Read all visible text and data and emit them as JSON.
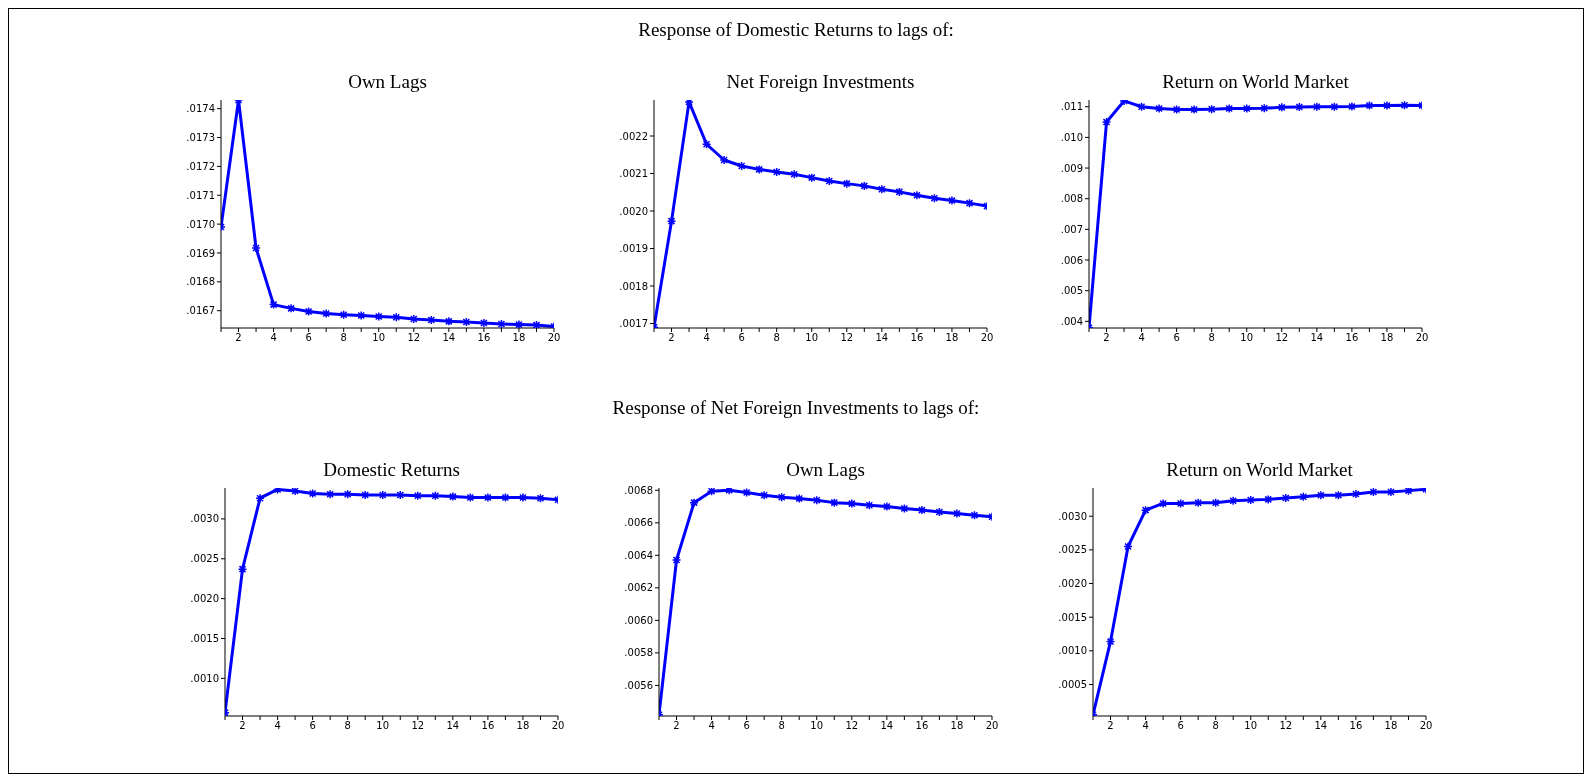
{
  "chart_data": [
    {
      "type": "line",
      "title": "Own Lags",
      "annotations": [
        "Response of Domestic Returns to lags of:"
      ],
      "x": [
        1,
        2,
        3,
        4,
        5,
        6,
        7,
        8,
        9,
        10,
        11,
        12,
        13,
        14,
        15,
        16,
        17,
        18,
        19,
        20
      ],
      "series": [
        {
          "color": "#0000ff",
          "values": [
            0.01699,
            0.01743,
            0.016917,
            0.016721,
            0.016708,
            0.016697,
            0.01669,
            0.016686,
            0.016683,
            0.01668,
            0.016677,
            0.016671,
            0.016668,
            0.016663,
            0.016661,
            0.016657,
            0.016654,
            0.016652,
            0.01665,
            0.016645
          ]
        }
      ],
      "xlim": [
        1,
        20
      ],
      "xticks": [
        {
          "value": 1,
          "label": null
        },
        2,
        {
          "value": 3,
          "label": null
        },
        4,
        {
          "value": 5,
          "label": null
        },
        6,
        {
          "value": 7,
          "label": null
        },
        8,
        {
          "value": 9,
          "label": null
        },
        10,
        {
          "value": 11,
          "label": null
        },
        12,
        {
          "value": 13,
          "label": null
        },
        14,
        {
          "value": 15,
          "label": null
        },
        16,
        {
          "value": 17,
          "label": null
        },
        18,
        {
          "value": 19,
          "label": null
        },
        20
      ],
      "ylim": [
        0.01664,
        0.01743
      ],
      "yticks": [
        {
          "value": 0.0167,
          "label": ".0167"
        },
        {
          "value": 0.0168,
          "label": ".0168"
        },
        {
          "value": 0.0169,
          "label": ".0169"
        },
        {
          "value": 0.017,
          "label": ".0170"
        },
        {
          "value": 0.0171,
          "label": ".0171"
        },
        {
          "value": 0.0172,
          "label": ".0172"
        },
        {
          "value": 0.0173,
          "label": ".0173"
        },
        {
          "value": 0.0174,
          "label": ".0174"
        }
      ],
      "marker": "cross",
      "line_style": "solid"
    },
    {
      "type": "line",
      "title": "Net Foreign Investments",
      "x": [
        1,
        2,
        3,
        4,
        5,
        6,
        7,
        8,
        9,
        10,
        11,
        12,
        13,
        14,
        15,
        16,
        17,
        18,
        19,
        20
      ],
      "series": [
        {
          "color": "#0000ff",
          "values": [
            0.00169,
            0.001973,
            0.002291,
            0.002178,
            0.002136,
            0.00212,
            0.002111,
            0.002104,
            0.002098,
            0.002089,
            0.00208,
            0.002073,
            0.002067,
            0.002058,
            0.002051,
            0.002042,
            0.002034,
            0.002028,
            0.002021,
            0.002013
          ]
        }
      ],
      "xlim": [
        1,
        20
      ],
      "xticks": [
        {
          "value": 1,
          "label": null
        },
        2,
        {
          "value": 3,
          "label": null
        },
        4,
        {
          "value": 5,
          "label": null
        },
        6,
        {
          "value": 7,
          "label": null
        },
        8,
        {
          "value": 9,
          "label": null
        },
        10,
        {
          "value": 11,
          "label": null
        },
        12,
        {
          "value": 13,
          "label": null
        },
        14,
        {
          "value": 15,
          "label": null
        },
        16,
        {
          "value": 17,
          "label": null
        },
        18,
        {
          "value": 19,
          "label": null
        },
        20
      ],
      "ylim": [
        0.001688,
        0.002296
      ],
      "yticks": [
        {
          "value": 0.0017,
          "label": ".0017"
        },
        {
          "value": 0.0018,
          "label": ".0018"
        },
        {
          "value": 0.0019,
          "label": ".0019"
        },
        {
          "value": 0.002,
          "label": ".0020"
        },
        {
          "value": 0.0021,
          "label": ".0021"
        },
        {
          "value": 0.0022,
          "label": ".0022"
        }
      ],
      "marker": "cross",
      "line_style": "solid"
    },
    {
      "type": "line",
      "title": "Return on World Market",
      "x": [
        1,
        2,
        3,
        4,
        5,
        6,
        7,
        8,
        9,
        10,
        11,
        12,
        13,
        14,
        15,
        16,
        17,
        18,
        19,
        20
      ],
      "series": [
        {
          "color": "#0000ff",
          "values": [
            0.00379,
            0.0105,
            0.01119,
            0.011,
            0.01094,
            0.01091,
            0.01091,
            0.01092,
            0.01094,
            0.01094,
            0.01095,
            0.01098,
            0.01099,
            0.011,
            0.011,
            0.01101,
            0.01104,
            0.01104,
            0.01105,
            0.01104
          ]
        }
      ],
      "xlim": [
        1,
        20
      ],
      "xticks": [
        {
          "value": 1,
          "label": null
        },
        2,
        {
          "value": 3,
          "label": null
        },
        4,
        {
          "value": 5,
          "label": null
        },
        6,
        {
          "value": 7,
          "label": null
        },
        8,
        {
          "value": 9,
          "label": null
        },
        10,
        {
          "value": 11,
          "label": null
        },
        12,
        {
          "value": 13,
          "label": null
        },
        14,
        {
          "value": 15,
          "label": null
        },
        16,
        {
          "value": 17,
          "label": null
        },
        18,
        {
          "value": 19,
          "label": null
        },
        20
      ],
      "ylim": [
        0.003782,
        0.01122
      ],
      "yticks": [
        {
          "value": 0.004,
          "label": ".004"
        },
        {
          "value": 0.005,
          "label": ".005"
        },
        {
          "value": 0.006,
          "label": ".006"
        },
        {
          "value": 0.007,
          "label": ".007"
        },
        {
          "value": 0.008,
          "label": ".008"
        },
        {
          "value": 0.009,
          "label": ".009"
        },
        {
          "value": 0.01,
          "label": ".010"
        },
        {
          "value": 0.011,
          "label": ".011"
        }
      ],
      "marker": "cross",
      "line_style": "solid"
    },
    {
      "type": "line",
      "title": "Domestic Returns",
      "annotations": [
        "Response of Net Foreign Investments to lags of:"
      ],
      "x": [
        1,
        2,
        3,
        4,
        5,
        6,
        7,
        8,
        9,
        10,
        11,
        12,
        13,
        14,
        15,
        16,
        17,
        18,
        19,
        20
      ],
      "series": [
        {
          "color": "#0000ff",
          "values": [
            0.00057,
            0.00237,
            0.00326,
            0.00337,
            0.00335,
            0.00332,
            0.00331,
            0.00331,
            0.0033,
            0.0033,
            0.0033,
            0.00329,
            0.00329,
            0.00328,
            0.00327,
            0.00327,
            0.00327,
            0.00327,
            0.00326,
            0.00324
          ]
        }
      ],
      "xlim": [
        1,
        20
      ],
      "xticks": [
        {
          "value": 1,
          "label": null
        },
        2,
        {
          "value": 3,
          "label": null
        },
        4,
        {
          "value": 5,
          "label": null
        },
        6,
        {
          "value": 7,
          "label": null
        },
        8,
        {
          "value": 9,
          "label": null
        },
        10,
        {
          "value": 11,
          "label": null
        },
        12,
        {
          "value": 13,
          "label": null
        },
        14,
        {
          "value": 15,
          "label": null
        },
        16,
        {
          "value": 17,
          "label": null
        },
        18,
        {
          "value": 19,
          "label": null
        },
        20
      ],
      "ylim": [
        0.000528,
        0.003388
      ],
      "yticks": [
        {
          "value": 0.001,
          "label": ".0010"
        },
        {
          "value": 0.0015,
          "label": ".0015"
        },
        {
          "value": 0.002,
          "label": ".0020"
        },
        {
          "value": 0.0025,
          "label": ".0025"
        },
        {
          "value": 0.003,
          "label": ".0030"
        }
      ],
      "marker": "cross",
      "line_style": "solid"
    },
    {
      "type": "line",
      "title": "Own Lags",
      "x": [
        1,
        2,
        3,
        4,
        5,
        6,
        7,
        8,
        9,
        10,
        11,
        12,
        13,
        14,
        15,
        16,
        17,
        18,
        19,
        20
      ],
      "series": [
        {
          "color": "#0000ff",
          "values": [
            0.00542,
            0.006371,
            0.006724,
            0.006794,
            0.0068,
            0.006786,
            0.006769,
            0.006757,
            0.006749,
            0.006739,
            0.006724,
            0.006718,
            0.006708,
            0.0067,
            0.006688,
            0.006678,
            0.006667,
            0.006657,
            0.006647,
            0.006637
          ]
        }
      ],
      "xlim": [
        1,
        20
      ],
      "xticks": [
        {
          "value": 1,
          "label": null
        },
        2,
        {
          "value": 3,
          "label": null
        },
        4,
        {
          "value": 5,
          "label": null
        },
        6,
        {
          "value": 7,
          "label": null
        },
        8,
        {
          "value": 9,
          "label": null
        },
        10,
        {
          "value": 11,
          "label": null
        },
        12,
        {
          "value": 13,
          "label": null
        },
        14,
        {
          "value": 15,
          "label": null
        },
        16,
        {
          "value": 17,
          "label": null
        },
        18,
        {
          "value": 19,
          "label": null
        },
        20
      ],
      "ylim": [
        0.005412,
        0.006814
      ],
      "yticks": [
        {
          "value": 0.0056,
          "label": ".0056"
        },
        {
          "value": 0.0058,
          "label": ".0058"
        },
        {
          "value": 0.006,
          "label": ".0060"
        },
        {
          "value": 0.0062,
          "label": ".0062"
        },
        {
          "value": 0.0064,
          "label": ".0064"
        },
        {
          "value": 0.0066,
          "label": ".0066"
        },
        {
          "value": 0.0068,
          "label": ".0068"
        }
      ],
      "marker": "cross",
      "line_style": "solid"
    },
    {
      "type": "line",
      "title": "Return on World Market",
      "x": [
        1,
        2,
        3,
        4,
        5,
        6,
        7,
        8,
        9,
        10,
        11,
        12,
        13,
        14,
        15,
        16,
        17,
        18,
        19,
        20
      ],
      "series": [
        {
          "color": "#0000ff",
          "values": [
            5e-05,
            0.00114,
            0.00255,
            0.00309,
            0.00319,
            0.00319,
            0.0032,
            0.0032,
            0.00323,
            0.00324,
            0.00325,
            0.00327,
            0.00329,
            0.00331,
            0.00331,
            0.00333,
            0.00336,
            0.00336,
            0.00338,
            0.0034
          ]
        }
      ],
      "xlim": [
        1,
        20
      ],
      "xticks": [
        {
          "value": 1,
          "label": null
        },
        2,
        {
          "value": 3,
          "label": null
        },
        4,
        {
          "value": 5,
          "label": null
        },
        6,
        {
          "value": 7,
          "label": null
        },
        8,
        {
          "value": 9,
          "label": null
        },
        10,
        {
          "value": 11,
          "label": null
        },
        12,
        {
          "value": 13,
          "label": null
        },
        14,
        {
          "value": 15,
          "label": null
        },
        16,
        {
          "value": 17,
          "label": null
        },
        18,
        {
          "value": 19,
          "label": null
        },
        20
      ],
      "ylim": [
        3.2e-05,
        0.003419
      ],
      "yticks": [
        {
          "value": 0.0005,
          "label": ".0005"
        },
        {
          "value": 0.001,
          "label": ".0010"
        },
        {
          "value": 0.0015,
          "label": ".0015"
        },
        {
          "value": 0.002,
          "label": ".0020"
        },
        {
          "value": 0.0025,
          "label": ".0025"
        },
        {
          "value": 0.003,
          "label": ".0030"
        }
      ],
      "marker": "cross",
      "line_style": "solid"
    }
  ]
}
